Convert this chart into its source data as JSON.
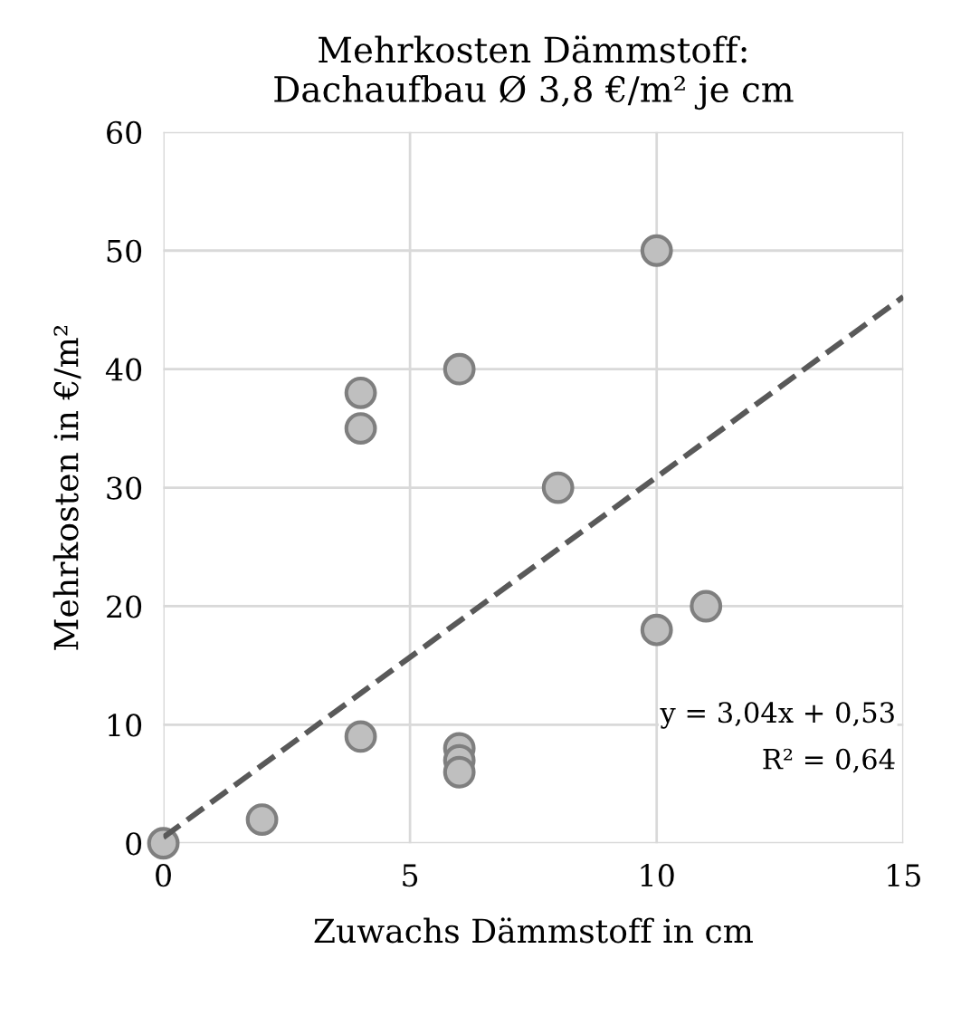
{
  "chart_data": {
    "type": "scatter",
    "title": "Mehrkosten Dämmstoff:\nDachaufbau Ø 3,8 €/m² je cm",
    "xlabel": "Zuwachs Dämmstoff in cm",
    "ylabel": "Mehrkosten in €/m²",
    "xlim": [
      0,
      15
    ],
    "xticks": [
      0,
      5,
      10,
      15
    ],
    "ylim": [
      0,
      60
    ],
    "yticks": [
      0,
      10,
      20,
      30,
      40,
      50,
      60
    ],
    "grid": true,
    "series": [
      {
        "marker": "circle",
        "color": "#bfbfbf",
        "x": [
          0,
          2,
          4,
          4,
          4,
          6,
          6,
          6,
          6,
          8,
          10,
          10,
          11
        ],
        "values": [
          0,
          2,
          38,
          35,
          9,
          40,
          8,
          7,
          6,
          30,
          50,
          18,
          20
        ]
      },
      {
        "type": "line",
        "color": "#595959",
        "line_style": "dashed",
        "marker": "none",
        "x": [
          0,
          15
        ],
        "values": [
          0.5,
          46.1
        ]
      }
    ],
    "annotations": [
      "y = 3,04x + 0,53",
      "R² = 0,64"
    ]
  }
}
